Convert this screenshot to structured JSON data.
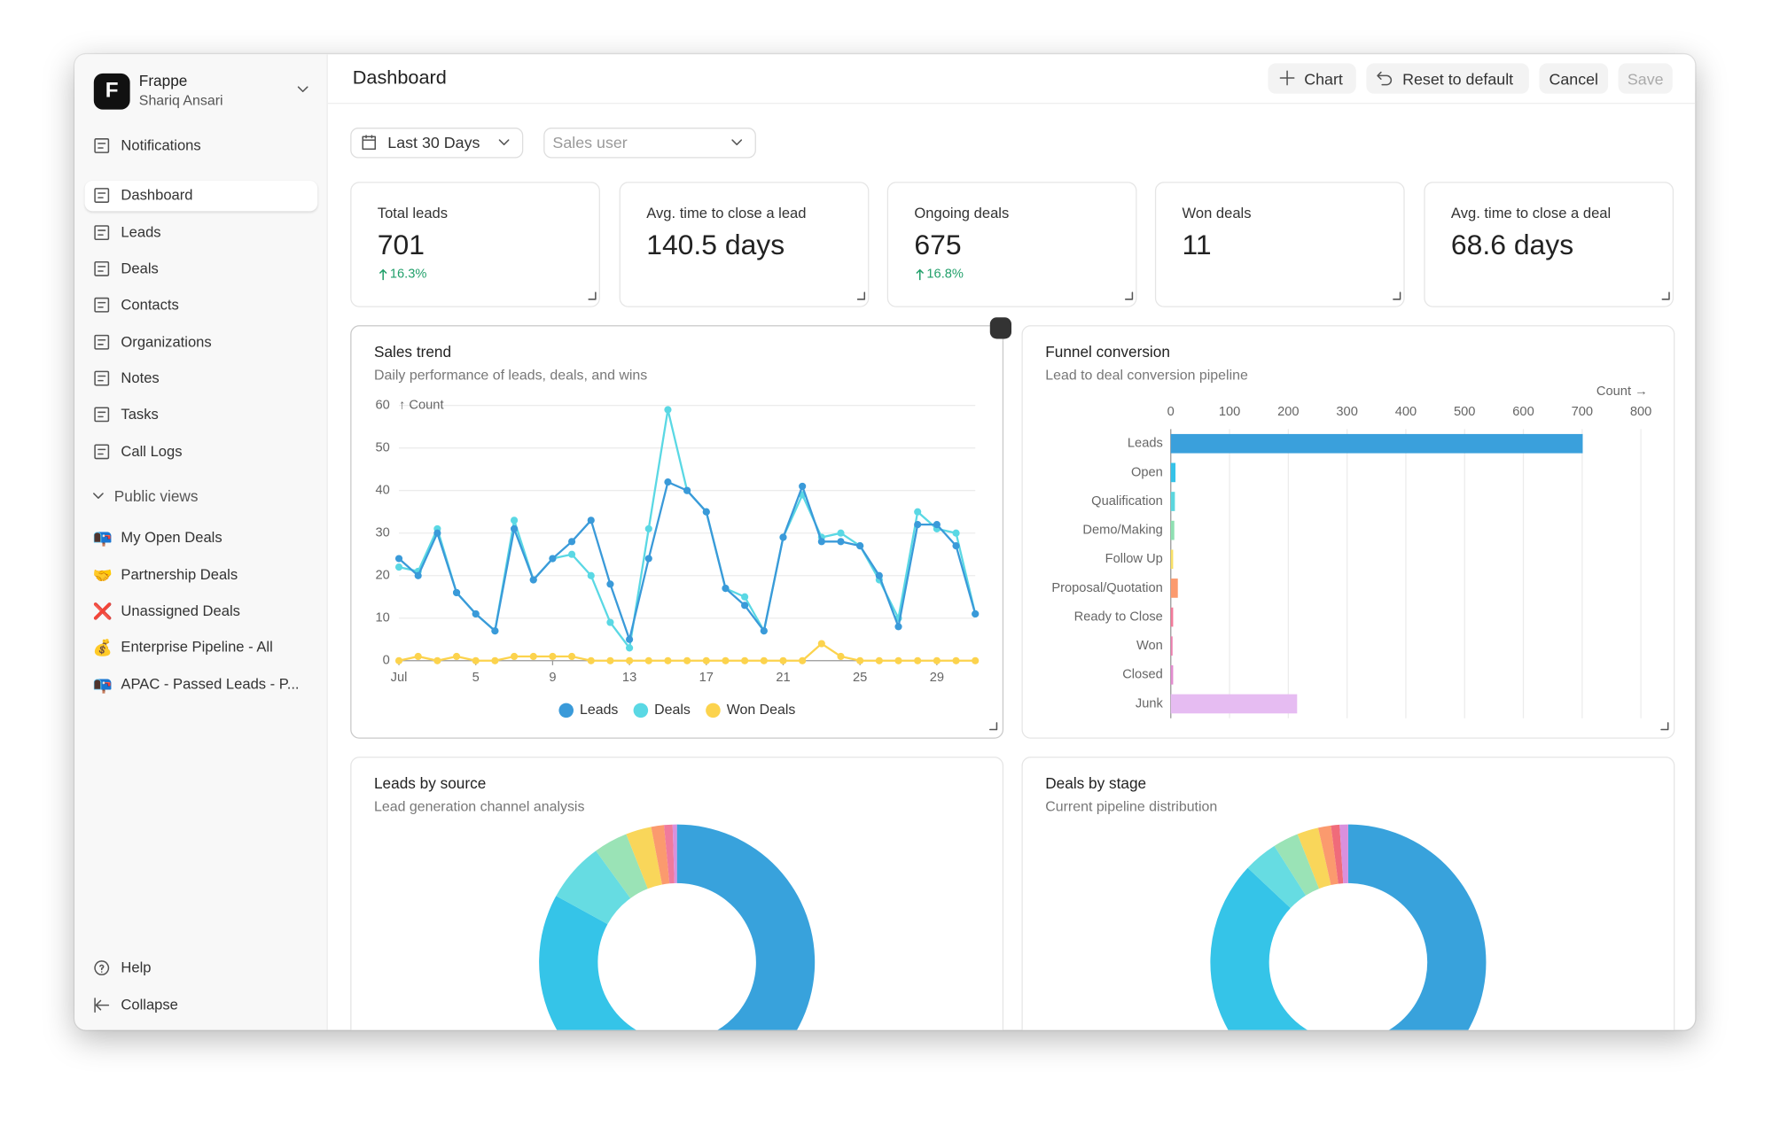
{
  "sidebar": {
    "logo": "F",
    "org": "Frappe",
    "user": "Shariq Ansari",
    "nav": [
      "Notifications",
      "Dashboard",
      "Leads",
      "Deals",
      "Contacts",
      "Organizations",
      "Notes",
      "Tasks",
      "Call Logs"
    ],
    "public_views_label": "Public views",
    "views": [
      {
        "icon": "📭",
        "label": "My Open Deals"
      },
      {
        "icon": "🤝",
        "label": "Partnership Deals"
      },
      {
        "icon": "❌",
        "label": "Unassigned Deals"
      },
      {
        "icon": "💰",
        "label": "Enterprise Pipeline - All"
      },
      {
        "icon": "📭",
        "label": "APAC - Passed Leads - P..."
      }
    ],
    "footer": [
      "Help",
      "Collapse"
    ]
  },
  "header": {
    "title": "Dashboard",
    "actions": [
      "Chart",
      "Reset to default",
      "Cancel",
      "Save"
    ]
  },
  "filters": {
    "period": "Last 30 Days",
    "user_placeholder": "Sales user"
  },
  "kpis": [
    {
      "label": "Total leads",
      "value": "701",
      "change": "16.3%"
    },
    {
      "label": "Avg. time to close a lead",
      "value": "140.5 days"
    },
    {
      "label": "Ongoing deals",
      "value": "675",
      "change": "16.8%"
    },
    {
      "label": "Won deals",
      "value": "11"
    },
    {
      "label": "Avg. time to close a deal",
      "value": "68.6 days"
    }
  ],
  "chart_data": [
    {
      "type": "line",
      "title": "Sales trend",
      "subtitle": "Daily performance of leads, deals, and wins",
      "ylabel": "↑ Count",
      "x": [
        1,
        2,
        3,
        4,
        5,
        6,
        7,
        8,
        9,
        10,
        11,
        12,
        13,
        14,
        15,
        16,
        17,
        18,
        19,
        20,
        21,
        22,
        23,
        24,
        25,
        26,
        27,
        28,
        29,
        30,
        31
      ],
      "xlim": [
        1,
        31
      ],
      "xticks": [
        {
          "value": 1,
          "label": "Jul"
        },
        5,
        9,
        13,
        17,
        21,
        25,
        29
      ],
      "ylim": [
        0,
        60
      ],
      "yticks": [
        0,
        10,
        20,
        30,
        40,
        50,
        60
      ],
      "grid": true,
      "series": [
        {
          "name": "Leads",
          "color": "#3a9ad9",
          "values": [
            24,
            20,
            30,
            16,
            11,
            7,
            31,
            19,
            24,
            28,
            33,
            18,
            5,
            24,
            42,
            40,
            35,
            17,
            13,
            7,
            29,
            41,
            28,
            28,
            27,
            20,
            8,
            32,
            32,
            27,
            11
          ]
        },
        {
          "name": "Deals",
          "color": "#5ad8e4",
          "values": [
            22,
            21,
            31,
            16,
            11,
            7,
            33,
            19,
            24,
            25,
            20,
            9,
            3,
            31,
            59,
            40,
            35,
            17,
            15,
            7,
            29,
            39,
            29,
            30,
            27,
            19,
            10,
            35,
            31,
            30,
            11
          ]
        },
        {
          "name": "Won Deals",
          "color": "#fcd34d",
          "values": [
            0,
            1,
            0,
            1,
            0,
            0,
            1,
            1,
            1,
            1,
            0,
            0,
            0,
            0,
            0,
            0,
            0,
            0,
            0,
            0,
            0,
            0,
            4,
            1,
            0,
            0,
            0,
            0,
            0,
            0,
            0
          ]
        }
      ]
    },
    {
      "type": "barh",
      "title": "Funnel conversion",
      "subtitle": "Lead to deal conversion pipeline",
      "xlabel": "Count →",
      "categories": [
        "Leads",
        "Open",
        "Qualification",
        "Demo/Making",
        "Follow Up",
        "Proposal/Quotation",
        "Ready to Close",
        "Won",
        "Closed",
        "Junk"
      ],
      "values": [
        701,
        8,
        7,
        6,
        4,
        12,
        4,
        3,
        4,
        215
      ],
      "colors": [
        "#3aa0dc",
        "#35c2e8",
        "#5bd6de",
        "#8fe0b2",
        "#f8e066",
        "#fb9a6e",
        "#f27a9a",
        "#ec7fae",
        "#e28ccf",
        "#e6bcf2"
      ],
      "xlim": [
        0,
        800
      ],
      "xticks": [
        0,
        100,
        200,
        300,
        400,
        500,
        600,
        700,
        800
      ],
      "grid": true
    },
    {
      "type": "donut",
      "title": "Leads by source",
      "subtitle": "Lead generation channel analysis",
      "values": [
        52,
        31,
        7,
        4,
        3,
        1.5,
        1,
        0.5
      ],
      "colors": [
        "#38a2dc",
        "#35c4e8",
        "#66dce2",
        "#9ae3b6",
        "#f9d65a",
        "#fb9a6e",
        "#f07a9c",
        "#d990dd"
      ]
    },
    {
      "type": "donut",
      "title": "Deals by stage",
      "subtitle": "Current pipeline distribution",
      "values": [
        50,
        37,
        4,
        3,
        2.5,
        1.5,
        1,
        1
      ],
      "colors": [
        "#38a2dc",
        "#35c4e8",
        "#66dce2",
        "#9ae3b6",
        "#f9d65a",
        "#fb9a6e",
        "#f06b7a",
        "#d990dd"
      ]
    }
  ]
}
